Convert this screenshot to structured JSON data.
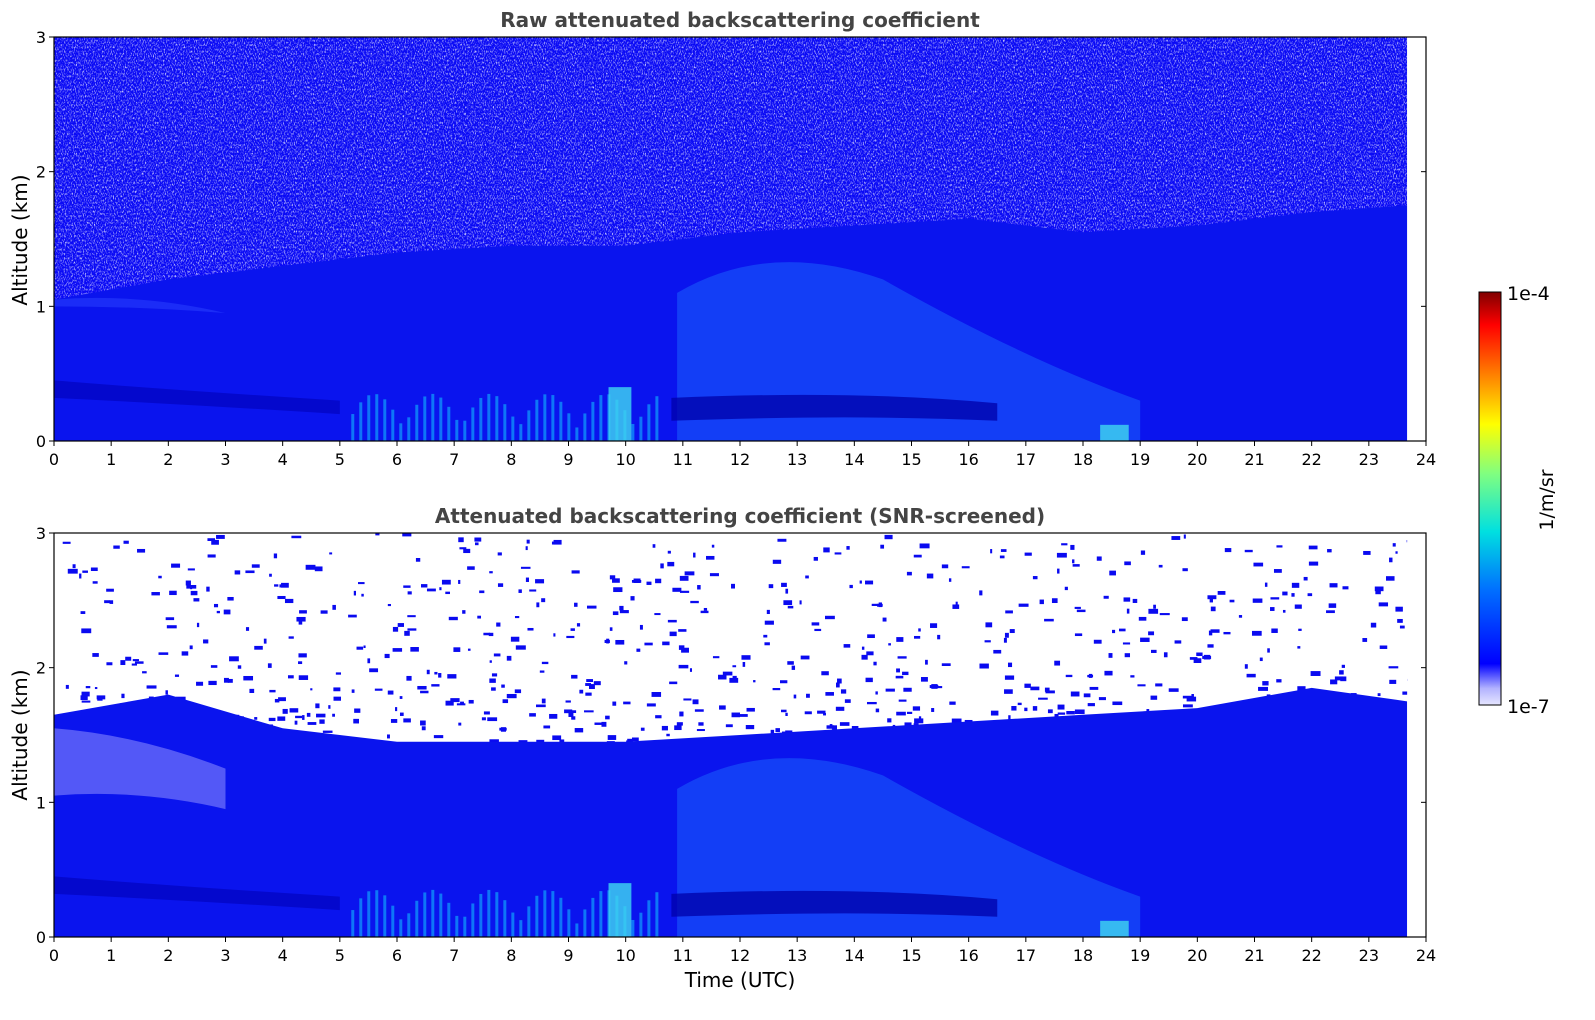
{
  "colors": {
    "colormap": [
      "#e6e6ff",
      "#b3b3ff",
      "#0000ff",
      "#0088ff",
      "#00e6e6",
      "#7fff7f",
      "#ffff00",
      "#ff8000",
      "#ff0000",
      "#800000"
    ],
    "background": "#ffffff",
    "title": "#444444"
  },
  "colorbar": {
    "max_label": "1e-4",
    "min_label": "1e-7",
    "unit": "1/m/sr",
    "range": [
      1e-07,
      0.0001
    ],
    "scale": "log"
  },
  "chart_data": [
    {
      "type": "heatmap",
      "title": "Raw attenuated backscattering coefficient",
      "xlabel": "",
      "ylabel": "Altitude (km)",
      "xlim": [
        0,
        24
      ],
      "ylim": [
        0,
        3
      ],
      "x_ticks": [
        "0",
        "1",
        "2",
        "3",
        "4",
        "5",
        "6",
        "7",
        "8",
        "9",
        "10",
        "11",
        "12",
        "13",
        "14",
        "15",
        "16",
        "17",
        "18",
        "19",
        "20",
        "21",
        "22",
        "23",
        "24"
      ],
      "y_ticks": [
        "0",
        "1",
        "2",
        "3"
      ],
      "data_end_time": 23.67,
      "boundary_layer_top_km": [
        {
          "t": 0,
          "h": 1.05
        },
        {
          "t": 2,
          "h": 1.2
        },
        {
          "t": 4,
          "h": 1.3
        },
        {
          "t": 6,
          "h": 1.4
        },
        {
          "t": 8,
          "h": 1.45
        },
        {
          "t": 10,
          "h": 1.45
        },
        {
          "t": 12,
          "h": 1.55
        },
        {
          "t": 14,
          "h": 1.6
        },
        {
          "t": 16,
          "h": 1.65
        },
        {
          "t": 18,
          "h": 1.55
        },
        {
          "t": 20,
          "h": 1.6
        },
        {
          "t": 22,
          "h": 1.7
        },
        {
          "t": 23.67,
          "h": 1.75
        }
      ]
    },
    {
      "type": "heatmap",
      "title": "Attenuated backscattering coefficient (SNR-screened)",
      "xlabel": "Time (UTC)",
      "ylabel": "Altitude (km)",
      "xlim": [
        0,
        24
      ],
      "ylim": [
        0,
        3
      ],
      "x_ticks": [
        "0",
        "1",
        "2",
        "3",
        "4",
        "5",
        "6",
        "7",
        "8",
        "9",
        "10",
        "11",
        "12",
        "13",
        "14",
        "15",
        "16",
        "17",
        "18",
        "19",
        "20",
        "21",
        "22",
        "23",
        "24"
      ],
      "y_ticks": [
        "0",
        "1",
        "2",
        "3"
      ],
      "data_end_time": 23.67,
      "boundary_layer_top_km": [
        {
          "t": 0,
          "h": 1.65
        },
        {
          "t": 2,
          "h": 1.8
        },
        {
          "t": 4,
          "h": 1.55
        },
        {
          "t": 6,
          "h": 1.45
        },
        {
          "t": 8,
          "h": 1.45
        },
        {
          "t": 10,
          "h": 1.45
        },
        {
          "t": 12,
          "h": 1.5
        },
        {
          "t": 14,
          "h": 1.55
        },
        {
          "t": 16,
          "h": 1.6
        },
        {
          "t": 18,
          "h": 1.65
        },
        {
          "t": 20,
          "h": 1.7
        },
        {
          "t": 22,
          "h": 1.85
        },
        {
          "t": 23.67,
          "h": 1.75
        }
      ]
    }
  ]
}
